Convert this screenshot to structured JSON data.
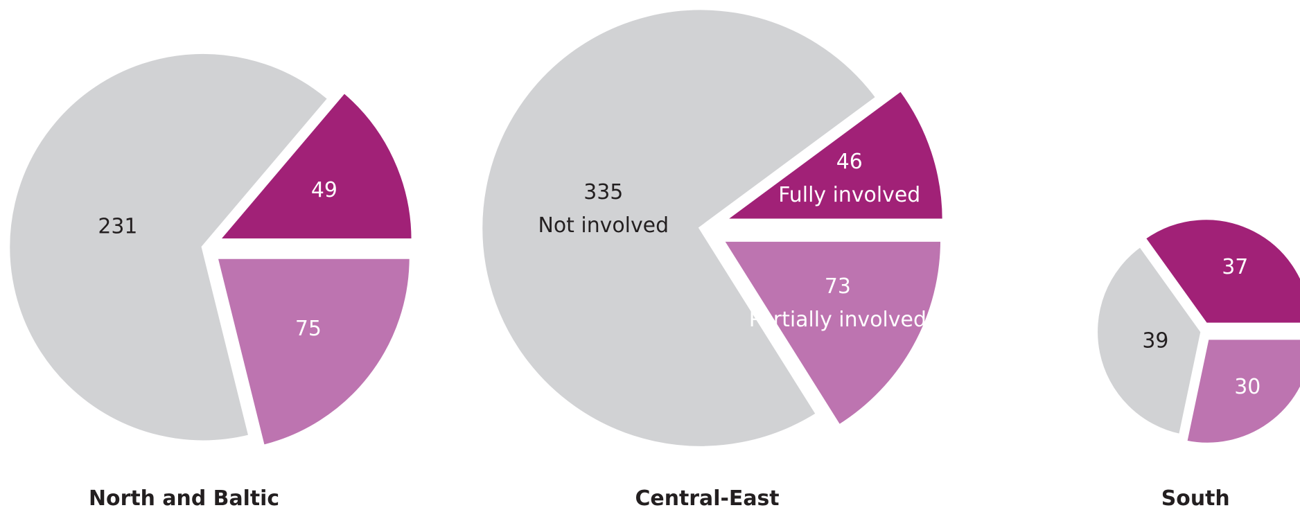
{
  "chart_data": [
    {
      "type": "pie",
      "title": "North and Baltic",
      "values": [
        231,
        49,
        75
      ],
      "colors": [
        "#d1d2d4",
        "#a12177",
        "#bd74b0"
      ]
    },
    {
      "type": "pie",
      "title": "Central-East",
      "categories": [
        "Not involved",
        "Fully involved",
        "Partially involved"
      ],
      "values": [
        335,
        46,
        73
      ],
      "colors": [
        "#d1d2d4",
        "#a12177",
        "#bd74b0"
      ]
    },
    {
      "type": "pie",
      "title": "South",
      "values": [
        39,
        37,
        30
      ],
      "colors": [
        "#d1d2d4",
        "#a12177",
        "#bd74b0"
      ]
    }
  ]
}
